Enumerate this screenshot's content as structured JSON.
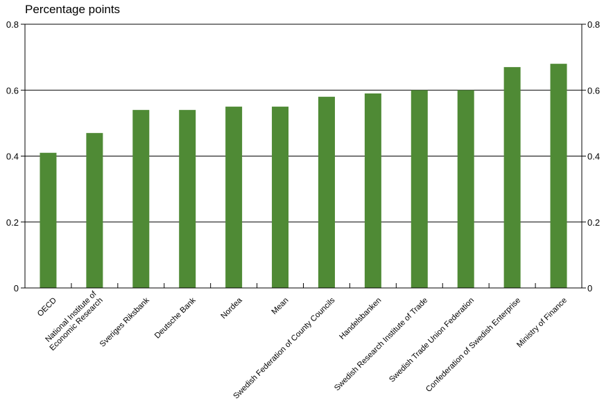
{
  "chart_data": {
    "type": "bar",
    "ylabel": "Percentage points",
    "ylim": [
      0,
      0.8
    ],
    "yticks": [
      "0",
      "0.2",
      "0.4",
      "0.6",
      "0.8"
    ],
    "categories": [
      [
        "OECD"
      ],
      [
        "National Institute of",
        "Economic Research"
      ],
      [
        "Sveriges Riksbank"
      ],
      [
        "Deutsche Bank"
      ],
      [
        "Nordea"
      ],
      [
        "Mean"
      ],
      [
        "Swedish Federation of County Councils"
      ],
      [
        "Handelsbanken"
      ],
      [
        "Swedish Research Institute of Trade"
      ],
      [
        "Swedish Trade Union Federation"
      ],
      [
        "Confederation of Swedish Enterprise"
      ],
      [
        "Ministry of Finance"
      ]
    ],
    "values": [
      0.41,
      0.47,
      0.54,
      0.54,
      0.55,
      0.55,
      0.58,
      0.59,
      0.6,
      0.6,
      0.67,
      0.68
    ],
    "grid": true,
    "bar_color": "#4f8a35"
  }
}
